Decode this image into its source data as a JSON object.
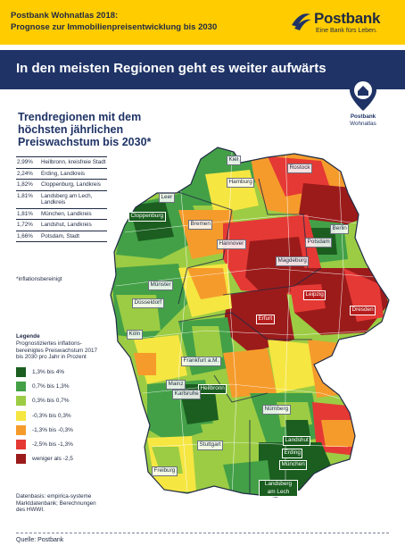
{
  "header": {
    "title_line1": "Postbank Wohnatlas 2018:",
    "title_line2": "Prognose zur Immobilienpreisentwicklung bis 2030",
    "brand_name": "Postbank",
    "brand_claim": "Eine Bank fürs Leben."
  },
  "band": {
    "title": "In den meisten Regionen geht es weiter aufwärts"
  },
  "pin": {
    "label_line1": "Postbank",
    "label_line2": "Wohnatlas"
  },
  "panel": {
    "title": "Trendregionen mit dem höchsten jährlichen Preiswachstum bis 2030*",
    "rows": [
      {
        "value": "2,99%",
        "name": "Heilbronn, kreisfreie Stadt"
      },
      {
        "value": "2,24%",
        "name": "Erding, Landkreis"
      },
      {
        "value": "1,82%",
        "name": "Cloppenburg, Landkreis"
      },
      {
        "value": "1,81%",
        "name": "Landsberg am Lech, Landkreis"
      },
      {
        "value": "1,81%",
        "name": "München, Landkreis"
      },
      {
        "value": "1,72%",
        "name": "Landshut, Landkreis"
      },
      {
        "value": "1,66%",
        "name": "Potsdam, Stadt"
      }
    ],
    "footnote": "*inflationsbereinigt"
  },
  "legend": {
    "title": "Legende",
    "description": "Prognostiziertes inflations-bereinigtes Preiswachstum 2017 bis 2030 pro Jahr in Prozent",
    "items": [
      {
        "label": "1,3% bis 4%",
        "color": "#1b5e20"
      },
      {
        "label": "0,7% bis 1,3%",
        "color": "#43a047"
      },
      {
        "label": "0,3% bis 0,7%",
        "color": "#9ccc44"
      },
      {
        "label": "-0,3% bis 0,3%",
        "color": "#f5e642"
      },
      {
        "label": "-1,3% bis -0,3%",
        "color": "#f59b2c"
      },
      {
        "label": "-2,5% bis -1,3%",
        "color": "#e53935"
      },
      {
        "label": "weniger als -2,5",
        "color": "#9b1b1b"
      }
    ]
  },
  "source_note": "Datenbasis: empirica-systeme Marktdatenbank; Berechnungen des HWWI.",
  "footer": {
    "source": "Quelle: Postbank"
  },
  "cities": {
    "kiel": "Kiel",
    "rostock": "Rostock",
    "hamburg": "Hamburg",
    "leer": "Leer",
    "berlin": "Berlin",
    "cloppenburg": "Cloppenburg",
    "bremen": "Bremen",
    "potsdam": "Potsdam",
    "hannover": "Hannover",
    "magdeburg": "Magdeburg",
    "muenster": "Münster",
    "leipzig": "Leipzig",
    "duesseldorf": "Düsseldorf",
    "dresden": "Dresden",
    "erfurt": "Erfurt",
    "koeln": "Köln",
    "frankfurt": "Frankfurt a.M.",
    "mainz": "Mainz",
    "heilbronn": "Heilbronn",
    "karlsruhe": "Karlsruhe",
    "nuernberg": "Nürnberg",
    "stuttgart": "Stuttgart",
    "landshut": "Landshut",
    "erding": "Erding",
    "muenchen": "München",
    "freiburg": "Freiburg",
    "landsberg": "Landsberg am Lech"
  }
}
